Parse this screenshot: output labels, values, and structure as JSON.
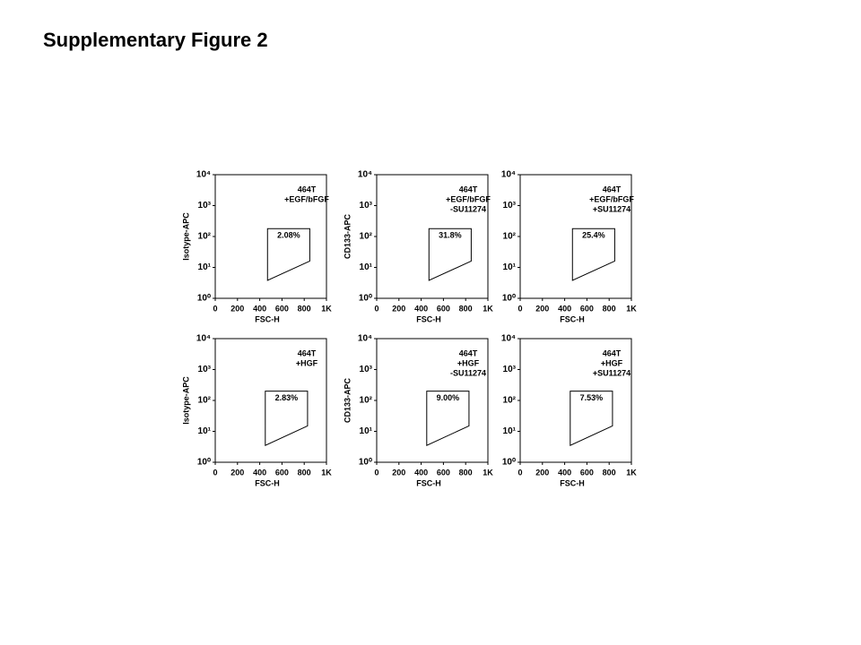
{
  "title": "Supplementary Figure 2",
  "chart_data": [
    {
      "type": "gate",
      "annotation": [
        "464T",
        "+EGF/bFGF"
      ],
      "xlabel": "FSC-H",
      "ylabel": "Isotype-APC",
      "xlim": [
        0,
        1000
      ],
      "xticks": [
        0,
        200,
        400,
        600,
        800,
        {
          "value": 1000,
          "label": "1K"
        }
      ],
      "ylim": [
        1,
        10000
      ],
      "log_y": true,
      "yticks": [
        {
          "value": 1,
          "label": "10⁰"
        },
        {
          "value": 10,
          "label": "10¹"
        },
        {
          "value": 100,
          "label": "10²"
        },
        {
          "value": 1000,
          "label": "10³"
        },
        {
          "value": 10000,
          "label": "10⁴"
        }
      ],
      "gate": {
        "x": [
          470,
          850,
          850,
          470
        ],
        "y": [
          180,
          180,
          16,
          3.8
        ]
      },
      "gate_label": "2.08%",
      "color": "#000000"
    },
    {
      "type": "gate",
      "annotation": [
        "464T",
        "+EGF/bFGF",
        "-SU11274"
      ],
      "xlabel": "FSC-H",
      "ylabel": "CD133-APC",
      "xlim": [
        0,
        1000
      ],
      "xticks": [
        0,
        200,
        400,
        600,
        800,
        {
          "value": 1000,
          "label": "1K"
        }
      ],
      "ylim": [
        1,
        10000
      ],
      "log_y": true,
      "yticks": [
        {
          "value": 1,
          "label": "10⁰"
        },
        {
          "value": 10,
          "label": "10¹"
        },
        {
          "value": 100,
          "label": "10²"
        },
        {
          "value": 1000,
          "label": "10³"
        },
        {
          "value": 10000,
          "label": "10⁴"
        }
      ],
      "gate": {
        "x": [
          470,
          850,
          850,
          470
        ],
        "y": [
          180,
          180,
          16,
          3.8
        ]
      },
      "gate_label": "31.8%",
      "color": "#000000"
    },
    {
      "type": "gate",
      "annotation": [
        "464T",
        "+EGF/bFGF",
        "+SU11274"
      ],
      "xlabel": "FSC-H",
      "ylabel": null,
      "xlim": [
        0,
        1000
      ],
      "xticks": [
        0,
        200,
        400,
        600,
        800,
        {
          "value": 1000,
          "label": "1K"
        }
      ],
      "ylim": [
        1,
        10000
      ],
      "log_y": true,
      "yticks": [
        {
          "value": 1,
          "label": "10⁰"
        },
        {
          "value": 10,
          "label": "10¹"
        },
        {
          "value": 100,
          "label": "10²"
        },
        {
          "value": 1000,
          "label": "10³"
        },
        {
          "value": 10000,
          "label": "10⁴"
        }
      ],
      "gate": {
        "x": [
          470,
          850,
          850,
          470
        ],
        "y": [
          180,
          180,
          16,
          3.8
        ]
      },
      "gate_label": "25.4%",
      "color": "#000000"
    },
    {
      "type": "gate",
      "annotation": [
        "464T",
        "+HGF"
      ],
      "xlabel": "FSC-H",
      "ylabel": "Isotype-APC",
      "xlim": [
        0,
        1000
      ],
      "xticks": [
        0,
        200,
        400,
        600,
        800,
        {
          "value": 1000,
          "label": "1K"
        }
      ],
      "ylim": [
        1,
        10000
      ],
      "log_y": true,
      "yticks": [
        {
          "value": 1,
          "label": "10⁰"
        },
        {
          "value": 10,
          "label": "10¹"
        },
        {
          "value": 100,
          "label": "10²"
        },
        {
          "value": 1000,
          "label": "10³"
        },
        {
          "value": 10000,
          "label": "10⁴"
        }
      ],
      "gate": {
        "x": [
          450,
          830,
          830,
          450
        ],
        "y": [
          200,
          200,
          15,
          3.5
        ]
      },
      "gate_label": "2.83%",
      "color": "#000000"
    },
    {
      "type": "gate",
      "annotation": [
        "464T",
        "+HGF",
        "-SU11274"
      ],
      "xlabel": "FSC-H",
      "ylabel": "CD133-APC",
      "xlim": [
        0,
        1000
      ],
      "xticks": [
        0,
        200,
        400,
        600,
        800,
        {
          "value": 1000,
          "label": "1K"
        }
      ],
      "ylim": [
        1,
        10000
      ],
      "log_y": true,
      "yticks": [
        {
          "value": 1,
          "label": "10⁰"
        },
        {
          "value": 10,
          "label": "10¹"
        },
        {
          "value": 100,
          "label": "10²"
        },
        {
          "value": 1000,
          "label": "10³"
        },
        {
          "value": 10000,
          "label": "10⁴"
        }
      ],
      "gate": {
        "x": [
          450,
          830,
          830,
          450
        ],
        "y": [
          200,
          200,
          15,
          3.5
        ]
      },
      "gate_label": "9.00%",
      "color": "#000000"
    },
    {
      "type": "gate",
      "annotation": [
        "464T",
        "+HGF",
        "+SU11274"
      ],
      "xlabel": "FSC-H",
      "ylabel": null,
      "xlim": [
        0,
        1000
      ],
      "xticks": [
        0,
        200,
        400,
        600,
        800,
        {
          "value": 1000,
          "label": "1K"
        }
      ],
      "ylim": [
        1,
        10000
      ],
      "log_y": true,
      "yticks": [
        {
          "value": 1,
          "label": "10⁰"
        },
        {
          "value": 10,
          "label": "10¹"
        },
        {
          "value": 100,
          "label": "10²"
        },
        {
          "value": 1000,
          "label": "10³"
        },
        {
          "value": 10000,
          "label": "10⁴"
        }
      ],
      "gate": {
        "x": [
          450,
          830,
          830,
          450
        ],
        "y": [
          200,
          200,
          15,
          3.5
        ]
      },
      "gate_label": "7.53%",
      "color": "#000000"
    }
  ]
}
